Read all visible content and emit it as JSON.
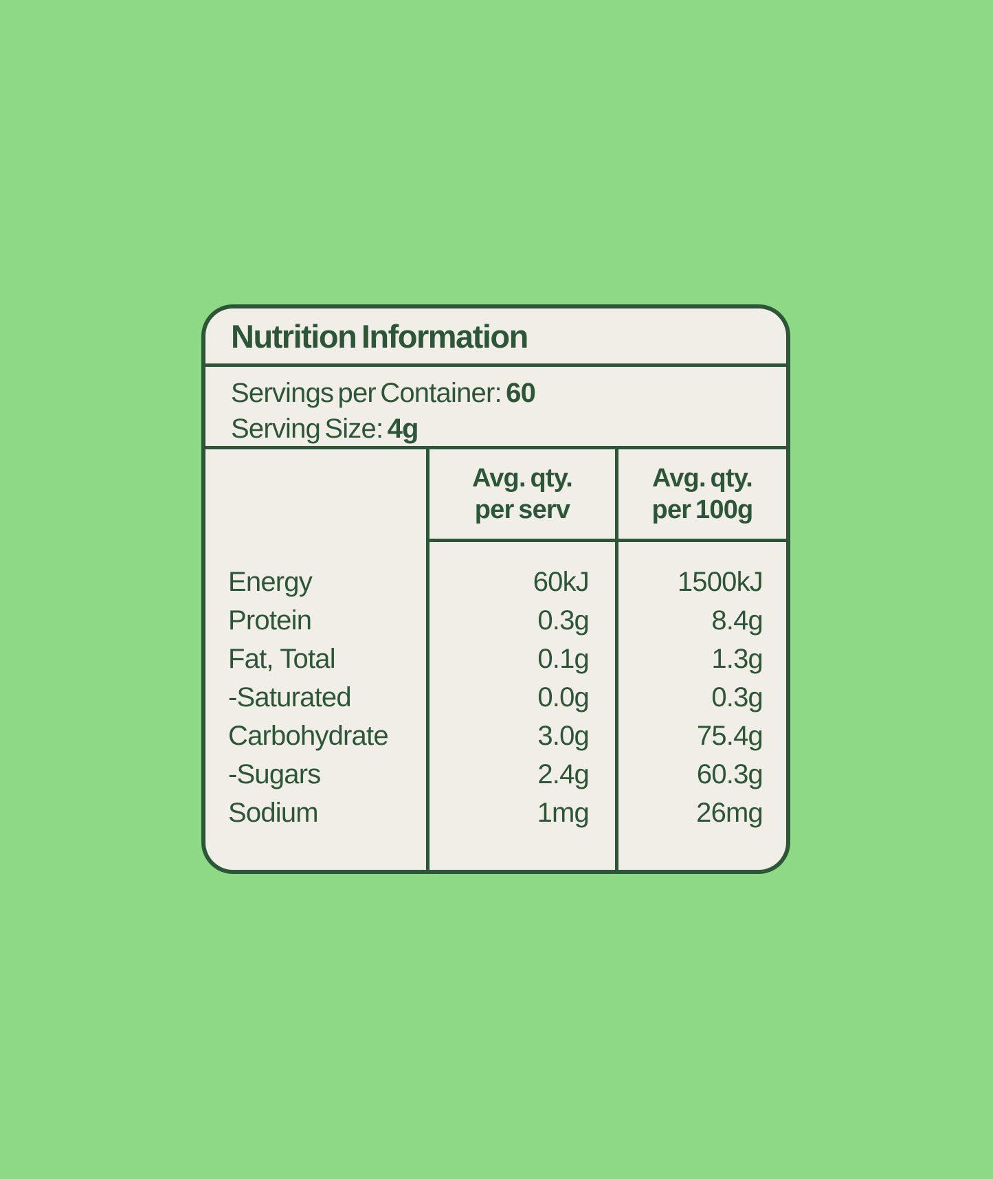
{
  "page": {
    "background_color": "#8ED985",
    "card_background": "#F1EEE8",
    "ink_color": "#2D5638"
  },
  "label": {
    "title": "Nutrition Information",
    "servings_line1_label": "Servings per Container:",
    "servings_line1_value": "60",
    "servings_line2_label": "Serving Size:",
    "servings_line2_value": "4g",
    "table": {
      "col_per_serv_line1": "Avg. qty.",
      "col_per_serv_line2": "per serv",
      "col_per_100g_line1": "Avg. qty.",
      "col_per_100g_line2": "per 100g",
      "rows": [
        {
          "nutrient": "Energy",
          "per_serv": "60kJ",
          "per_100g": "1500kJ"
        },
        {
          "nutrient": "Protein",
          "per_serv": "0.3g",
          "per_100g": "8.4g"
        },
        {
          "nutrient": "Fat, Total",
          "per_serv": "0.1g",
          "per_100g": "1.3g"
        },
        {
          "nutrient": "-Saturated",
          "per_serv": "0.0g",
          "per_100g": "0.3g"
        },
        {
          "nutrient": "Carbohydrate",
          "per_serv": "3.0g",
          "per_100g": "75.4g"
        },
        {
          "nutrient": "-Sugars",
          "per_serv": "2.4g",
          "per_100g": "60.3g"
        },
        {
          "nutrient": "Sodium",
          "per_serv": "1mg",
          "per_100g": "26mg"
        }
      ]
    }
  }
}
